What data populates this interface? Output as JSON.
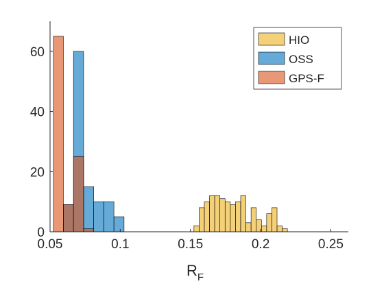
{
  "chart_data": {
    "type": "histogram",
    "xlabel": "R",
    "xlabel_sub": "F",
    "ylabel": "",
    "xlim": [
      0.05,
      0.2625
    ],
    "ylim": [
      0,
      70
    ],
    "x_ticks": [
      0.05,
      0.1,
      0.15,
      0.2,
      0.25
    ],
    "x_tick_labels": [
      "0.05",
      "0.1",
      "0.15",
      "0.2",
      "0.25"
    ],
    "y_ticks": [
      0,
      20,
      40,
      60
    ],
    "y_tick_labels": [
      "0",
      "20",
      "40",
      "60"
    ],
    "legend_position": "top-right",
    "series": [
      {
        "name": "HIO",
        "color": "#EDB120",
        "bins": [
          {
            "x0": 0.1525,
            "x1": 0.1562,
            "count": 2
          },
          {
            "x0": 0.1562,
            "x1": 0.1599,
            "count": 8
          },
          {
            "x0": 0.1599,
            "x1": 0.1636,
            "count": 10
          },
          {
            "x0": 0.1636,
            "x1": 0.1673,
            "count": 12
          },
          {
            "x0": 0.1673,
            "x1": 0.171,
            "count": 12
          },
          {
            "x0": 0.171,
            "x1": 0.1747,
            "count": 11
          },
          {
            "x0": 0.1747,
            "x1": 0.1784,
            "count": 10
          },
          {
            "x0": 0.1784,
            "x1": 0.1821,
            "count": 9
          },
          {
            "x0": 0.1821,
            "x1": 0.1858,
            "count": 10
          },
          {
            "x0": 0.1858,
            "x1": 0.1895,
            "count": 12
          },
          {
            "x0": 0.1895,
            "x1": 0.1932,
            "count": 3
          },
          {
            "x0": 0.1932,
            "x1": 0.1969,
            "count": 8
          },
          {
            "x0": 0.1969,
            "x1": 0.2006,
            "count": 4
          },
          {
            "x0": 0.2006,
            "x1": 0.2043,
            "count": 2
          },
          {
            "x0": 0.2043,
            "x1": 0.208,
            "count": 6
          },
          {
            "x0": 0.208,
            "x1": 0.2117,
            "count": 8
          },
          {
            "x0": 0.2117,
            "x1": 0.2154,
            "count": 2
          },
          {
            "x0": 0.2154,
            "x1": 0.2191,
            "count": 1
          }
        ]
      },
      {
        "name": "OSS",
        "color": "#0072BD",
        "bins": [
          {
            "x0": 0.0595,
            "x1": 0.0667,
            "count": 9
          },
          {
            "x0": 0.0667,
            "x1": 0.0739,
            "count": 60
          },
          {
            "x0": 0.0739,
            "x1": 0.0811,
            "count": 15
          },
          {
            "x0": 0.0811,
            "x1": 0.0883,
            "count": 10
          },
          {
            "x0": 0.0883,
            "x1": 0.0955,
            "count": 10
          },
          {
            "x0": 0.0955,
            "x1": 0.1027,
            "count": 5
          }
        ]
      },
      {
        "name": "GPS-F",
        "color": "#D95319",
        "bins": [
          {
            "x0": 0.0524,
            "x1": 0.0595,
            "count": 65
          },
          {
            "x0": 0.0595,
            "x1": 0.0667,
            "count": 9
          },
          {
            "x0": 0.0667,
            "x1": 0.0739,
            "count": 25
          },
          {
            "x0": 0.0739,
            "x1": 0.0811,
            "count": 1
          }
        ]
      }
    ]
  }
}
